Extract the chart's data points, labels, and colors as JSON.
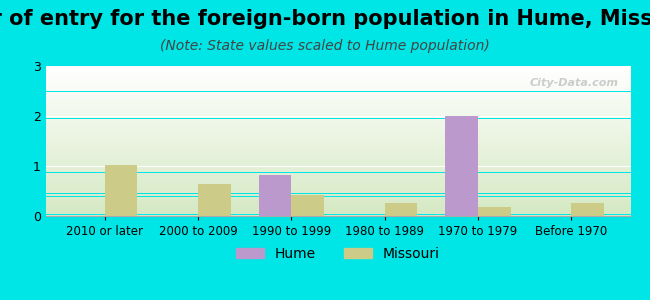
{
  "title": "Year of entry for the foreign-born population in Hume, Missouri",
  "subtitle": "(Note: State values scaled to Hume population)",
  "categories": [
    "2010 or later",
    "2000 to 2009",
    "1990 to 1999",
    "1980 to 1989",
    "1970 to 1979",
    "Before 1970"
  ],
  "hume_values": [
    0,
    0,
    0.83,
    0,
    2.0,
    0
  ],
  "missouri_values": [
    1.02,
    0.65,
    0.43,
    0.27,
    0.18,
    0.27
  ],
  "hume_color": "#bb99cc",
  "missouri_color": "#cccc88",
  "background_color": "#00e5e5",
  "plot_bg_top": "#ffffff",
  "plot_bg_bottom": "#d4e8c2",
  "ylim": [
    0,
    3
  ],
  "yticks": [
    0,
    1,
    2,
    3
  ],
  "bar_width": 0.35,
  "title_fontsize": 15,
  "subtitle_fontsize": 10,
  "legend_labels": [
    "Hume",
    "Missouri"
  ],
  "watermark": "City-Data.com"
}
